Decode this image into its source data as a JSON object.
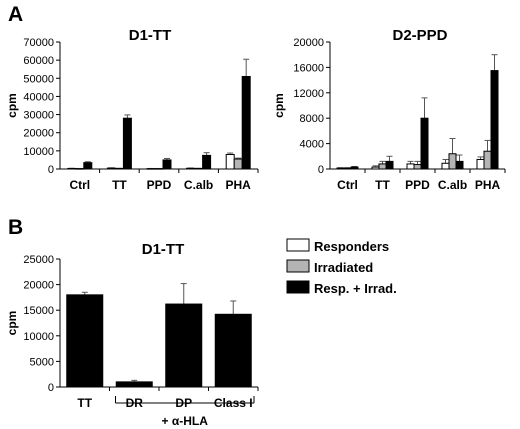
{
  "panels": {
    "a": "A",
    "b": "B"
  },
  "legend": [
    {
      "label": "Responders",
      "color": "#ffffff"
    },
    {
      "label": "Irradiated",
      "color": "#b4b4b4"
    },
    {
      "label": "Resp. + Irrad.",
      "color": "#000000"
    }
  ],
  "group_bracket_label": "+ α-HLA",
  "chart_data": [
    {
      "type": "bar",
      "title": "D1-TT",
      "ylabel": "cpm",
      "ylim": [
        0,
        70000
      ],
      "yticks": [
        0,
        10000,
        20000,
        30000,
        40000,
        50000,
        60000,
        70000
      ],
      "categories": [
        "Ctrl",
        "TT",
        "PPD",
        "C.alb",
        "PHA"
      ],
      "series": [
        {
          "name": "Responders",
          "values": [
            300,
            500,
            200,
            400,
            8000
          ],
          "errors": [
            100,
            150,
            100,
            150,
            800
          ]
        },
        {
          "name": "Irradiated",
          "values": [
            200,
            300,
            200,
            300,
            5500
          ],
          "errors": [
            100,
            100,
            100,
            100,
            500
          ]
        },
        {
          "name": "Resp. + Irrad.",
          "values": [
            3500,
            28000,
            5000,
            7500,
            51000
          ],
          "errors": [
            500,
            1800,
            800,
            1500,
            9500
          ]
        }
      ]
    },
    {
      "type": "bar",
      "title": "D2-PPD",
      "ylabel": "cpm",
      "ylim": [
        0,
        20000
      ],
      "yticks": [
        0,
        4000,
        8000,
        12000,
        16000,
        20000
      ],
      "categories": [
        "Ctrl",
        "TT",
        "PPD",
        "C.alb",
        "PHA"
      ],
      "series": [
        {
          "name": "Responders",
          "values": [
            150,
            300,
            800,
            900,
            1500
          ],
          "errors": [
            50,
            200,
            400,
            600,
            400
          ]
        },
        {
          "name": "Irradiated",
          "values": [
            150,
            800,
            700,
            2400,
            2800
          ],
          "errors": [
            50,
            400,
            500,
            2400,
            1700
          ]
        },
        {
          "name": "Resp. + Irrad.",
          "values": [
            300,
            1200,
            8000,
            1200,
            15500
          ],
          "errors": [
            100,
            800,
            3200,
            1000,
            2500
          ]
        }
      ]
    },
    {
      "type": "bar",
      "title": "D1-TT",
      "ylabel": "cpm",
      "ylim": [
        0,
        25000
      ],
      "yticks": [
        0,
        5000,
        10000,
        15000,
        20000,
        25000
      ],
      "categories": [
        "TT",
        "DR",
        "DP",
        "Class I"
      ],
      "series": [
        {
          "name": "Resp. + Irrad.",
          "values": [
            18000,
            1000,
            16200,
            14200
          ],
          "errors": [
            500,
            300,
            4000,
            2600
          ]
        }
      ]
    }
  ]
}
